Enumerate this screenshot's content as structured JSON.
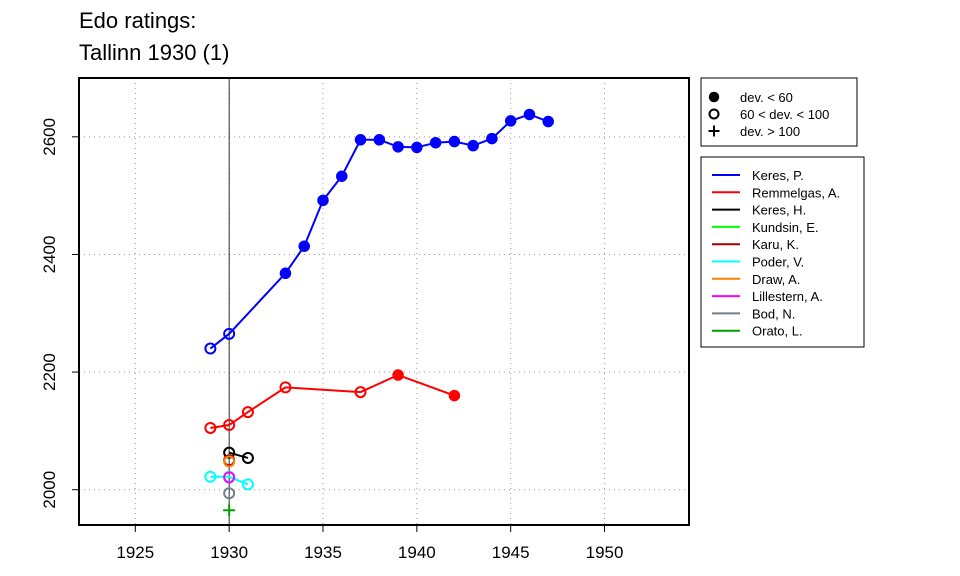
{
  "chart_data": {
    "type": "line",
    "title": "Edo ratings:",
    "subtitle": "Tallinn 1930 (1)",
    "xlabel": "",
    "ylabel": "",
    "xlim": [
      1922,
      1954.5
    ],
    "ylim": [
      1940,
      2700
    ],
    "x_ticks": [
      1925,
      1930,
      1935,
      1940,
      1945,
      1950
    ],
    "y_ticks": [
      2000,
      2200,
      2400,
      2600
    ],
    "grid": true,
    "marked_year": 1930,
    "marker_legend": [
      {
        "symbol": "filled",
        "label": "dev. < 60"
      },
      {
        "symbol": "open",
        "label": "60 < dev. < 100"
      },
      {
        "symbol": "plus",
        "label": "dev. > 100"
      }
    ],
    "legend_placement": "right",
    "series": [
      {
        "name": "Keres, P.",
        "color": "#0000ff",
        "points": [
          {
            "x": 1929,
            "y": 2240,
            "m": "open"
          },
          {
            "x": 1930,
            "y": 2265,
            "m": "open"
          },
          {
            "x": 1933,
            "y": 2368,
            "m": "filled"
          },
          {
            "x": 1934,
            "y": 2414,
            "m": "filled"
          },
          {
            "x": 1935,
            "y": 2492,
            "m": "filled"
          },
          {
            "x": 1936,
            "y": 2533,
            "m": "filled"
          },
          {
            "x": 1937,
            "y": 2595,
            "m": "filled"
          },
          {
            "x": 1938,
            "y": 2595,
            "m": "filled"
          },
          {
            "x": 1939,
            "y": 2583,
            "m": "filled"
          },
          {
            "x": 1940,
            "y": 2582,
            "m": "filled"
          },
          {
            "x": 1941,
            "y": 2590,
            "m": "filled"
          },
          {
            "x": 1942,
            "y": 2592,
            "m": "filled"
          },
          {
            "x": 1943,
            "y": 2585,
            "m": "filled"
          },
          {
            "x": 1944,
            "y": 2597,
            "m": "filled"
          },
          {
            "x": 1945,
            "y": 2627,
            "m": "filled"
          },
          {
            "x": 1946,
            "y": 2638,
            "m": "filled"
          },
          {
            "x": 1947,
            "y": 2626,
            "m": "filled"
          }
        ]
      },
      {
        "name": "Remmelgas, A.",
        "color": "#ff0000",
        "points": [
          {
            "x": 1929,
            "y": 2105,
            "m": "open"
          },
          {
            "x": 1930,
            "y": 2110,
            "m": "open"
          },
          {
            "x": 1931,
            "y": 2132,
            "m": "open"
          },
          {
            "x": 1933,
            "y": 2174,
            "m": "open"
          },
          {
            "x": 1937,
            "y": 2166,
            "m": "open"
          },
          {
            "x": 1939,
            "y": 2195,
            "m": "filled"
          },
          {
            "x": 1942,
            "y": 2160,
            "m": "filled"
          }
        ]
      },
      {
        "name": "Keres, H.",
        "color": "#000000",
        "points": [
          {
            "x": 1930,
            "y": 2063,
            "m": "open"
          },
          {
            "x": 1931,
            "y": 2054,
            "m": "open"
          }
        ]
      },
      {
        "name": "Kundsin, E.",
        "color": "#00ff00",
        "points": []
      },
      {
        "name": "Karu, K.",
        "color": "#a00000",
        "points": [
          {
            "x": 1930,
            "y": 2050,
            "m": "open"
          }
        ]
      },
      {
        "name": "Poder, V.",
        "color": "#00ffff",
        "points": [
          {
            "x": 1929,
            "y": 2022,
            "m": "open"
          },
          {
            "x": 1930,
            "y": 2022,
            "m": "open"
          },
          {
            "x": 1931,
            "y": 2009,
            "m": "open"
          }
        ]
      },
      {
        "name": "Draw, A.",
        "color": "#ff8000",
        "points": [
          {
            "x": 1930,
            "y": 2048,
            "m": "open"
          }
        ]
      },
      {
        "name": "Lillestern, A.",
        "color": "#ff00ff",
        "points": [
          {
            "x": 1930,
            "y": 2021,
            "m": "open"
          }
        ]
      },
      {
        "name": "Bod, N.",
        "color": "#708090",
        "points": [
          {
            "x": 1930,
            "y": 1994,
            "m": "open"
          }
        ]
      },
      {
        "name": "Orato, L.",
        "color": "#00a000",
        "points": [
          {
            "x": 1930,
            "y": 1965,
            "m": "plus"
          }
        ]
      }
    ]
  }
}
